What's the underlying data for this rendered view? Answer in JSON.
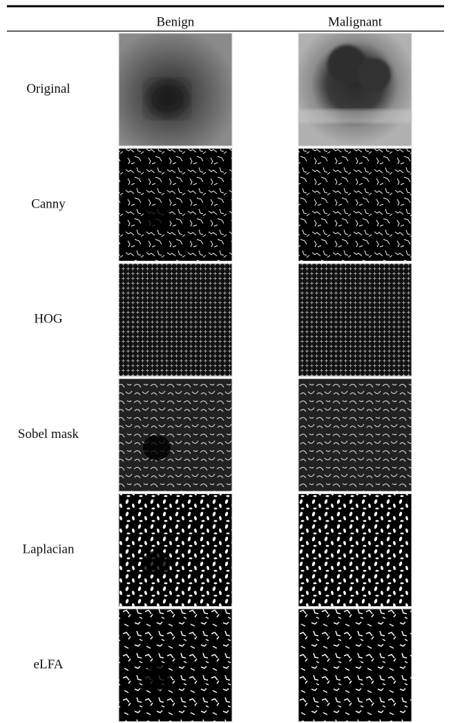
{
  "header": {
    "columns": [
      "Benign",
      "Malignant"
    ]
  },
  "rows": [
    "Original",
    "Canny",
    "HOG",
    "Sobel mask",
    "Laplacian",
    "eLFA"
  ]
}
